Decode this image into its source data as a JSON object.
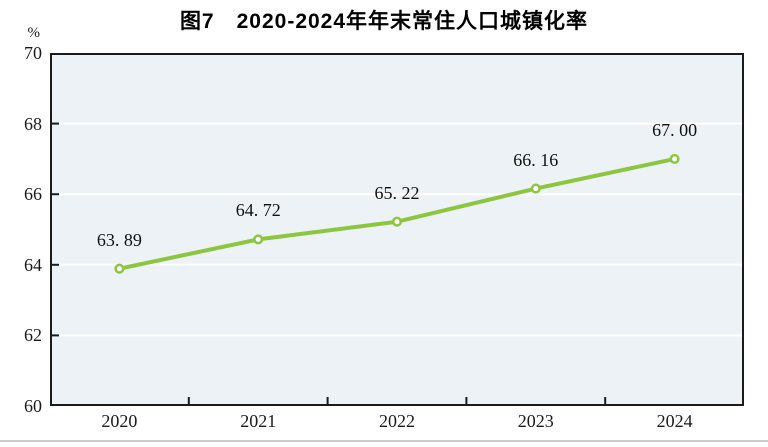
{
  "figure": {
    "title": "图7　2020-2024年年末常住人口城镇化率",
    "unit_label": "%"
  },
  "chart_data": {
    "type": "line",
    "title": "图7　2020-2024年年末常住人口城镇化率",
    "categories": [
      "2020",
      "2021",
      "2022",
      "2023",
      "2024"
    ],
    "series": [
      {
        "name": "年末常住人口城镇化率",
        "values": [
          63.89,
          64.72,
          65.22,
          66.16,
          67.0
        ],
        "point_labels": [
          "63. 89",
          "64. 72",
          "65. 22",
          "66. 16",
          "67. 00"
        ]
      }
    ],
    "xlabel": "",
    "ylabel": "%",
    "ylim": [
      60,
      70
    ],
    "yticks": [
      60,
      62,
      64,
      66,
      68,
      70
    ],
    "grid": "horizontal-white-lines",
    "legend": "none",
    "colors": {
      "line": "#8CC63F",
      "marker_fill": "#FFFFFF",
      "plot_background": "#ECF2F5",
      "frame": "#1b1b1b",
      "gridline": "#FFFFFF",
      "text": "#111111",
      "divider": "#C8CCCD"
    }
  }
}
